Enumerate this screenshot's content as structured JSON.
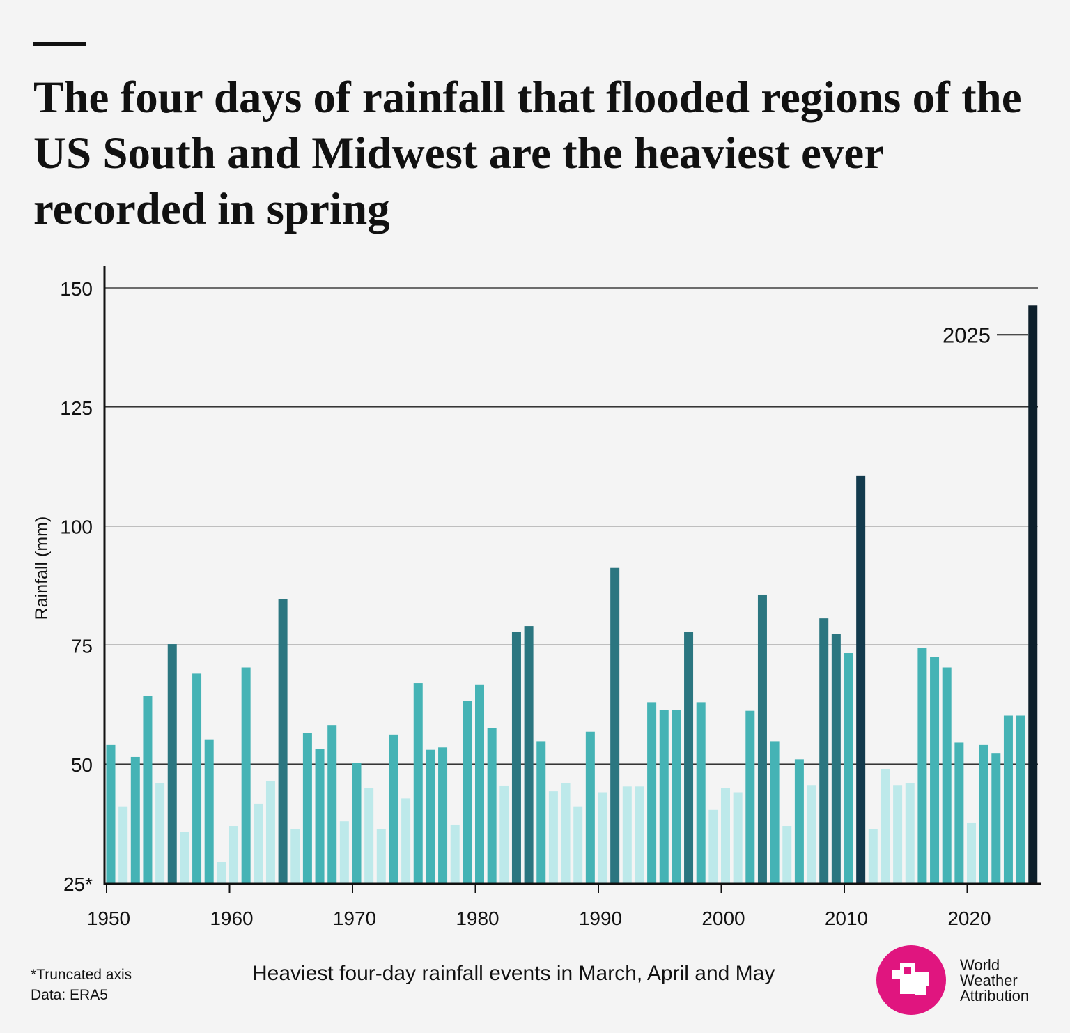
{
  "title": "The four days of rainfall that flooded regions of the US South and Midwest are the heaviest ever recorded in spring",
  "chart_data": {
    "type": "bar",
    "ylabel": "Rainfall (mm)",
    "xlabel": "Heaviest four-day rainfall events in March, April and May",
    "ylim": [
      25,
      155
    ],
    "yticks": [
      25,
      50,
      75,
      100,
      125,
      150
    ],
    "ytick_labels": [
      "25*",
      "50",
      "75",
      "100",
      "125",
      "150"
    ],
    "xticks": [
      1950,
      1960,
      1970,
      1980,
      1990,
      2000,
      2010,
      2020
    ],
    "grid": "horizontal",
    "annotations": [
      {
        "year": 2025,
        "text": "2025"
      }
    ],
    "colors": {
      "lightest": "#bde9ea",
      "medium": "#45b3b5",
      "dark": "#2b7680",
      "darker": "#133a4d",
      "darkest": "#0d1f2b"
    },
    "years": [
      1950,
      1951,
      1952,
      1953,
      1954,
      1955,
      1956,
      1957,
      1958,
      1959,
      1960,
      1961,
      1962,
      1963,
      1964,
      1965,
      1966,
      1967,
      1968,
      1969,
      1970,
      1971,
      1972,
      1973,
      1974,
      1975,
      1976,
      1977,
      1978,
      1979,
      1980,
      1981,
      1982,
      1983,
      1984,
      1985,
      1986,
      1987,
      1988,
      1989,
      1990,
      1991,
      1992,
      1993,
      1994,
      1995,
      1996,
      1997,
      1998,
      1999,
      2000,
      2001,
      2002,
      2003,
      2004,
      2005,
      2006,
      2007,
      2008,
      2009,
      2010,
      2011,
      2012,
      2013,
      2014,
      2015,
      2016,
      2017,
      2018,
      2019,
      2020,
      2021,
      2022,
      2023,
      2024,
      2025
    ],
    "values": [
      54.0,
      41.0,
      51.5,
      64.3,
      46.0,
      75.2,
      35.8,
      69.0,
      55.2,
      29.5,
      37.0,
      70.3,
      41.7,
      46.5,
      84.6,
      36.4,
      56.5,
      53.2,
      58.2,
      38.0,
      50.3,
      45.0,
      36.4,
      56.2,
      42.8,
      67.0,
      53.0,
      53.5,
      37.3,
      63.3,
      66.6,
      57.5,
      45.5,
      77.8,
      79.0,
      54.8,
      44.3,
      46.0,
      41.0,
      56.8,
      44.1,
      91.2,
      45.3,
      45.3,
      63.0,
      61.4,
      61.4,
      77.8,
      63.0,
      40.4,
      45.0,
      44.1,
      61.2,
      85.6,
      54.8,
      37.0,
      51.0,
      45.6,
      80.6,
      77.3,
      73.3,
      110.5,
      36.4,
      49.0,
      45.6,
      46.0,
      74.4,
      72.5,
      70.3,
      54.5,
      37.6,
      54.0,
      52.2,
      60.2,
      60.2,
      146.3
    ],
    "shade": [
      1,
      0,
      1,
      1,
      0,
      2,
      0,
      1,
      1,
      0,
      0,
      1,
      0,
      0,
      2,
      0,
      1,
      1,
      1,
      0,
      1,
      0,
      0,
      1,
      0,
      1,
      1,
      1,
      0,
      1,
      1,
      1,
      0,
      2,
      2,
      1,
      0,
      0,
      0,
      1,
      0,
      2,
      0,
      0,
      1,
      1,
      1,
      2,
      1,
      0,
      0,
      0,
      1,
      2,
      1,
      0,
      1,
      0,
      2,
      2,
      1,
      3,
      0,
      0,
      0,
      0,
      1,
      1,
      1,
      1,
      0,
      1,
      1,
      1,
      1,
      4
    ]
  },
  "footnote": {
    "truncated": "*Truncated axis",
    "source": "Data: ERA5"
  },
  "logo": {
    "line1": "World",
    "line2": "Weather",
    "line3": "Attribution"
  }
}
